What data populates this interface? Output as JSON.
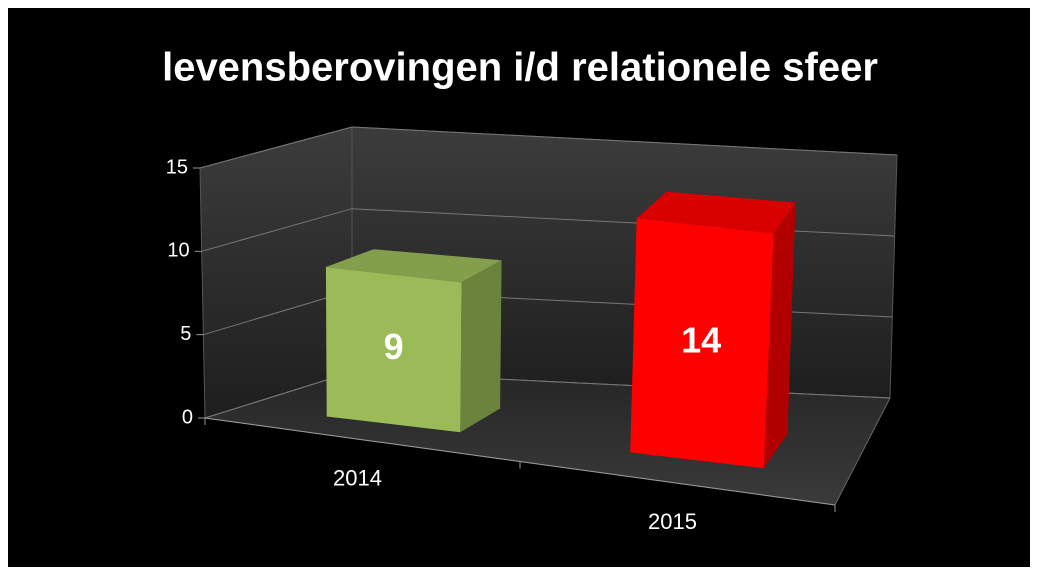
{
  "chart_data": {
    "type": "bar3d",
    "title": "levensberovingen i/d relationele sfeer",
    "categories": [
      "2014",
      "2015"
    ],
    "values": [
      9,
      14
    ],
    "colors": [
      "#9bbb59",
      "#ff0000"
    ],
    "ylim": [
      0,
      15
    ],
    "yticks": [
      0,
      5,
      10,
      15
    ],
    "grid": true
  }
}
